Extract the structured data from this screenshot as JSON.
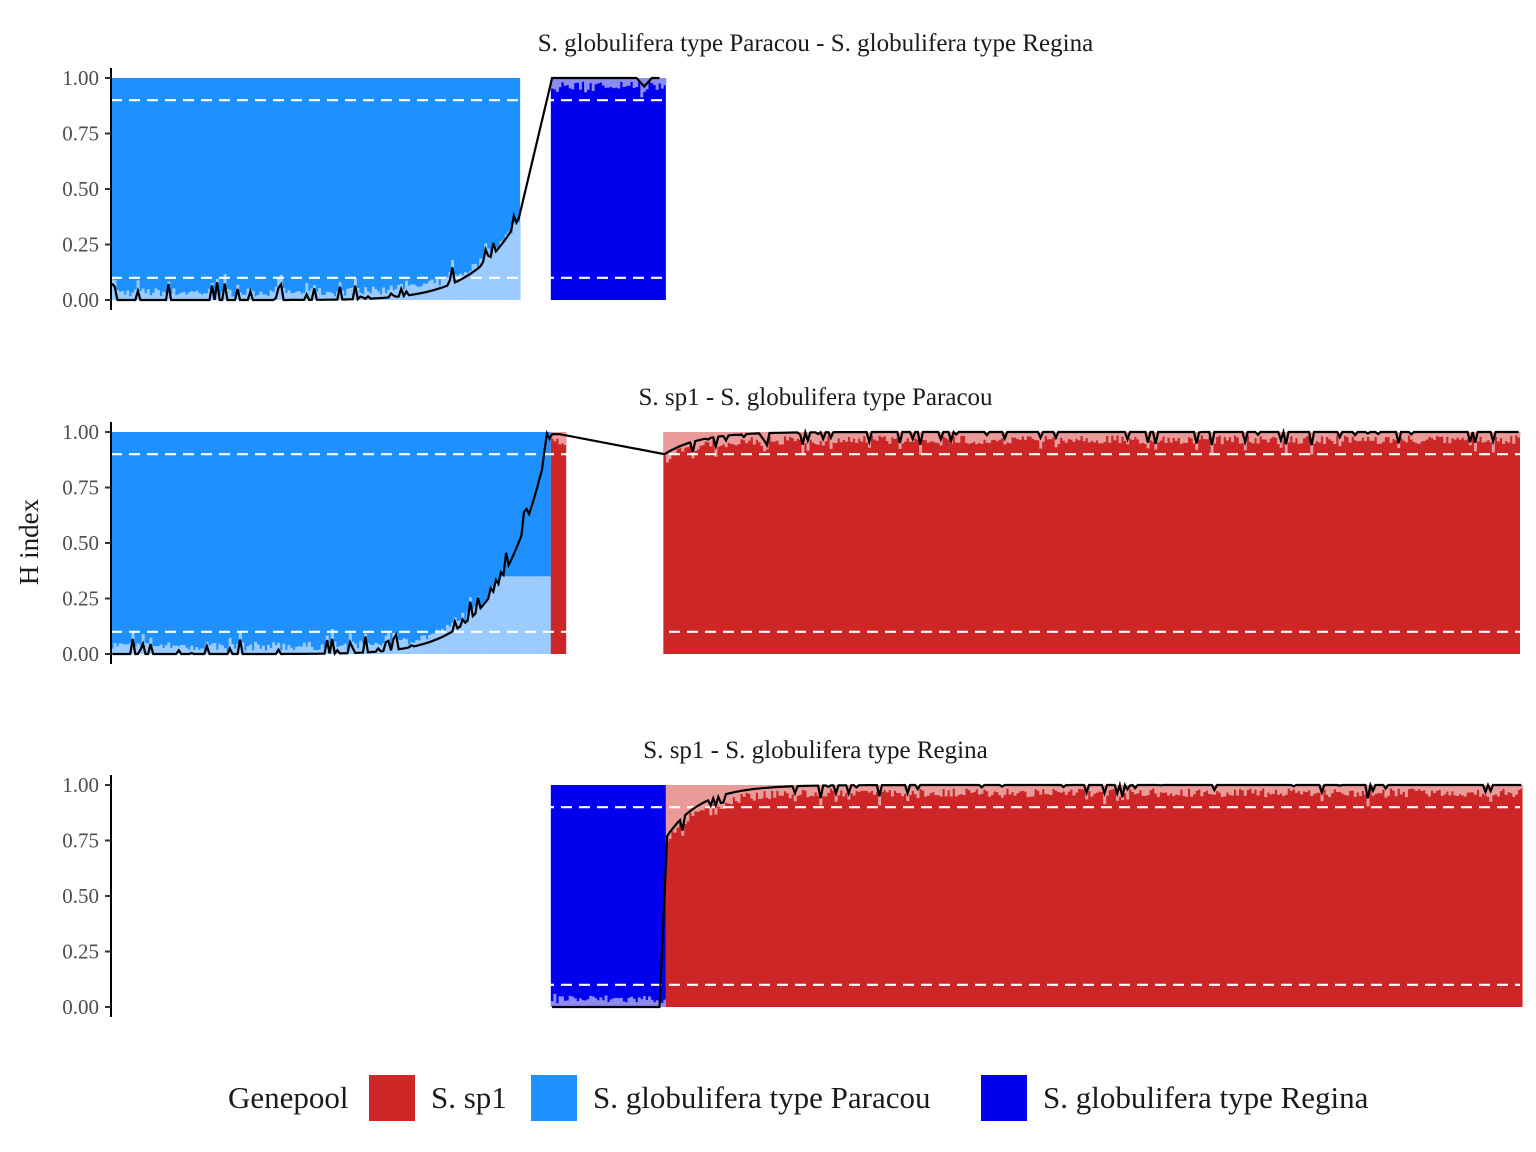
{
  "chart_data": {
    "type": "area",
    "ylabel": "H index",
    "xlabel": "",
    "ylim": [
      0,
      1
    ],
    "yticks": [
      "0.00",
      "0.25",
      "0.50",
      "0.75",
      "1.00"
    ],
    "threshold_lines": [
      0.1,
      0.9
    ],
    "legend": {
      "title": "Genepool",
      "placement": "bottom",
      "entries": [
        {
          "label": "S. sp1",
          "color": "#CD2626"
        },
        {
          "label": "S. globulifera type Paracou",
          "color": "#1E90FF"
        },
        {
          "label": "S. globulifera type Regina",
          "color": "#0000EE"
        }
      ]
    },
    "panels": [
      {
        "title": "S. globulifera type Paracou - S. globulifera type Regina",
        "segments": [
          {
            "genepool": "S. globulifera type Paracou",
            "n": 160,
            "h_start": 0.0,
            "h_end": 0.37,
            "shape": "late-rise"
          },
          {
            "genepool": "none",
            "n": 12
          },
          {
            "genepool": "S. globulifera type Regina",
            "n": 45,
            "h_start": 1.0,
            "h_end": 1.0,
            "shape": "flat"
          }
        ]
      },
      {
        "title": "S. sp1 - S. globulifera type Paracou",
        "segments": [
          {
            "genepool": "S. globulifera type Paracou",
            "n": 172,
            "h_start": 0.0,
            "h_end": 0.97,
            "shape": "late-rise"
          },
          {
            "genepool": "S. sp1",
            "n": 6,
            "h_start": 0.99,
            "h_end": 1.0,
            "shape": "flat"
          },
          {
            "genepool": "none",
            "n": 38
          },
          {
            "genepool": "S. sp1",
            "n": 335,
            "h_start": 0.9,
            "h_end": 1.0,
            "shape": "early-rise"
          }
        ]
      },
      {
        "title": "S. sp1 - S. globulifera type Regina",
        "segments": [
          {
            "genepool": "none",
            "n": 172
          },
          {
            "genepool": "S. globulifera type Regina",
            "n": 45,
            "h_start": 0.0,
            "h_end": 0.0,
            "shape": "flat"
          },
          {
            "genepool": "S. sp1",
            "n": 335,
            "h_start": 0.77,
            "h_end": 1.0,
            "shape": "early-rise"
          }
        ]
      }
    ]
  }
}
